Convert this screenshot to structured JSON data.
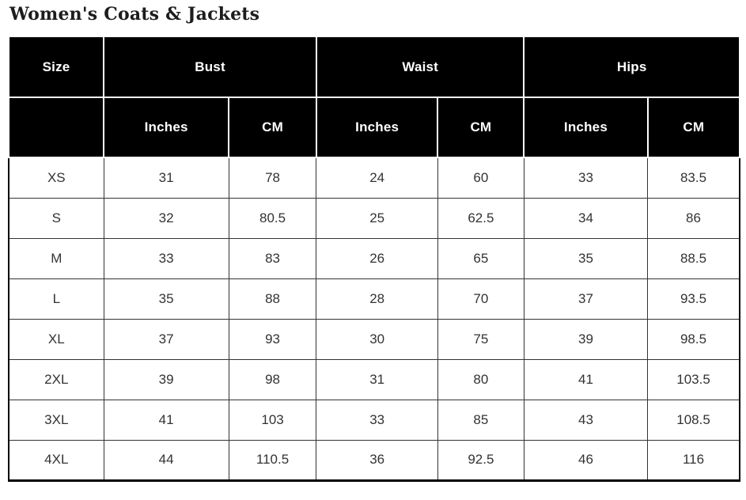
{
  "title": "Women's Coats & Jackets",
  "colors": {
    "header_background": "#000000",
    "header_text": "#ffffff",
    "header_divider": "#ffffff",
    "cell_text": "#333333",
    "grid_line": "#333333",
    "page_background": "#ffffff"
  },
  "table": {
    "column_groups": [
      {
        "label": "Size"
      },
      {
        "label": "Bust"
      },
      {
        "label": "Waist"
      },
      {
        "label": "Hips"
      }
    ],
    "unit_headers": [
      "Inches",
      "CM",
      "Inches",
      "CM",
      "Inches",
      "CM"
    ],
    "rows": [
      {
        "size": "XS",
        "values": [
          "31",
          "78",
          "24",
          "60",
          "33",
          "83.5"
        ]
      },
      {
        "size": "S",
        "values": [
          "32",
          "80.5",
          "25",
          "62.5",
          "34",
          "86"
        ]
      },
      {
        "size": "M",
        "values": [
          "33",
          "83",
          "26",
          "65",
          "35",
          "88.5"
        ]
      },
      {
        "size": "L",
        "values": [
          "35",
          "88",
          "28",
          "70",
          "37",
          "93.5"
        ]
      },
      {
        "size": "XL",
        "values": [
          "37",
          "93",
          "30",
          "75",
          "39",
          "98.5"
        ]
      },
      {
        "size": "2XL",
        "values": [
          "39",
          "98",
          "31",
          "80",
          "41",
          "103.5"
        ]
      },
      {
        "size": "3XL",
        "values": [
          "41",
          "103",
          "33",
          "85",
          "43",
          "108.5"
        ]
      },
      {
        "size": "4XL",
        "values": [
          "44",
          "110.5",
          "36",
          "92.5",
          "46",
          "116"
        ]
      }
    ]
  }
}
